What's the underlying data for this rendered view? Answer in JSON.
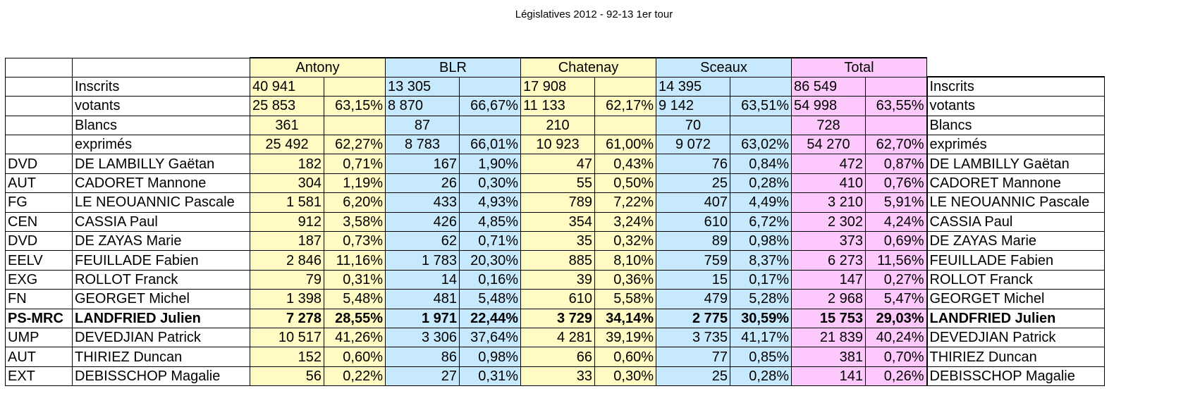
{
  "title": "Législatives 2012 - 92-13 1er tour",
  "communes": [
    "Antony",
    "BLR",
    "Chatenay",
    "Sceaux",
    "Total"
  ],
  "stats": [
    {
      "label": "Inscrits",
      "values": [
        [
          "40 941",
          ""
        ],
        [
          "13 305",
          ""
        ],
        [
          "17 908",
          ""
        ],
        [
          "14 395",
          ""
        ],
        [
          "86 549",
          ""
        ]
      ],
      "align": "left"
    },
    {
      "label": "votants",
      "values": [
        [
          "25 853",
          "63,15%"
        ],
        [
          "8 870",
          "66,67%"
        ],
        [
          "11 133",
          "62,17%"
        ],
        [
          "9 142",
          "63,51%"
        ],
        [
          "54 998",
          "63,55%"
        ]
      ],
      "align": "left"
    },
    {
      "label": "Blancs",
      "values": [
        [
          "361",
          ""
        ],
        [
          "87",
          ""
        ],
        [
          "210",
          ""
        ],
        [
          "70",
          ""
        ],
        [
          "728",
          ""
        ]
      ],
      "align": "center"
    },
    {
      "label": "exprimés",
      "values": [
        [
          "25 492",
          "62,27%"
        ],
        [
          "8 783",
          "66,01%"
        ],
        [
          "10 923",
          "61,00%"
        ],
        [
          "9 072",
          "63,02%"
        ],
        [
          "54 270",
          "62,70%"
        ]
      ],
      "align": "center"
    }
  ],
  "candidates": [
    {
      "party": "DVD",
      "name": "DE LAMBILLY Gaëtan",
      "values": [
        [
          "182",
          "0,71%"
        ],
        [
          "167",
          "1,90%"
        ],
        [
          "47",
          "0,43%"
        ],
        [
          "76",
          "0,84%"
        ],
        [
          "472",
          "0,87%"
        ]
      ]
    },
    {
      "party": "AUT",
      "name": "CADORET Mannone",
      "values": [
        [
          "304",
          "1,19%"
        ],
        [
          "26",
          "0,30%"
        ],
        [
          "55",
          "0,50%"
        ],
        [
          "25",
          "0,28%"
        ],
        [
          "410",
          "0,76%"
        ]
      ]
    },
    {
      "party": "FG",
      "name": "LE NEOUANNIC Pascale",
      "values": [
        [
          "1 581",
          "6,20%"
        ],
        [
          "433",
          "4,93%"
        ],
        [
          "789",
          "7,22%"
        ],
        [
          "407",
          "4,49%"
        ],
        [
          "3 210",
          "5,91%"
        ]
      ]
    },
    {
      "party": "CEN",
      "name": "CASSIA Paul",
      "values": [
        [
          "912",
          "3,58%"
        ],
        [
          "426",
          "4,85%"
        ],
        [
          "354",
          "3,24%"
        ],
        [
          "610",
          "6,72%"
        ],
        [
          "2 302",
          "4,24%"
        ]
      ]
    },
    {
      "party": "DVD",
      "name": "DE ZAYAS Marie",
      "values": [
        [
          "187",
          "0,73%"
        ],
        [
          "62",
          "0,71%"
        ],
        [
          "35",
          "0,32%"
        ],
        [
          "89",
          "0,98%"
        ],
        [
          "373",
          "0,69%"
        ]
      ]
    },
    {
      "party": "EELV",
      "name": "FEUILLADE Fabien",
      "values": [
        [
          "2 846",
          "11,16%"
        ],
        [
          "1 783",
          "20,30%"
        ],
        [
          "885",
          "8,10%"
        ],
        [
          "759",
          "8,37%"
        ],
        [
          "6 273",
          "11,56%"
        ]
      ]
    },
    {
      "party": "EXG",
      "name": "ROLLOT Franck",
      "values": [
        [
          "79",
          "0,31%"
        ],
        [
          "14",
          "0,16%"
        ],
        [
          "39",
          "0,36%"
        ],
        [
          "15",
          "0,17%"
        ],
        [
          "147",
          "0,27%"
        ]
      ]
    },
    {
      "party": "FN",
      "name": "GEORGET Michel",
      "values": [
        [
          "1 398",
          "5,48%"
        ],
        [
          "481",
          "5,48%"
        ],
        [
          "610",
          "5,58%"
        ],
        [
          "479",
          "5,28%"
        ],
        [
          "2 968",
          "5,47%"
        ]
      ]
    },
    {
      "party": "PS-MRC",
      "name": "LANDFRIED Julien",
      "bold": true,
      "values": [
        [
          "7 278",
          "28,55%"
        ],
        [
          "1 971",
          "22,44%"
        ],
        [
          "3 729",
          "34,14%"
        ],
        [
          "2 775",
          "30,59%"
        ],
        [
          "15 753",
          "29,03%"
        ]
      ]
    },
    {
      "party": "UMP",
      "name": "DEVEDJIAN Patrick",
      "values": [
        [
          "10 517",
          "41,26%"
        ],
        [
          "3 306",
          "37,64%"
        ],
        [
          "4 281",
          "39,19%"
        ],
        [
          "3 735",
          "41,17%"
        ],
        [
          "21 839",
          "40,24%"
        ]
      ]
    },
    {
      "party": "AUT",
      "name": "THIRIEZ Duncan",
      "values": [
        [
          "152",
          "0,60%"
        ],
        [
          "86",
          "0,98%"
        ],
        [
          "66",
          "0,60%"
        ],
        [
          "77",
          "0,85%"
        ],
        [
          "381",
          "0,70%"
        ]
      ]
    },
    {
      "party": "EXT",
      "name": "DEBISSCHOP Magalie",
      "values": [
        [
          "56",
          "0,22%"
        ],
        [
          "27",
          "0,31%"
        ],
        [
          "33",
          "0,30%"
        ],
        [
          "25",
          "0,28%"
        ],
        [
          "141",
          "0,26%"
        ]
      ]
    }
  ]
}
